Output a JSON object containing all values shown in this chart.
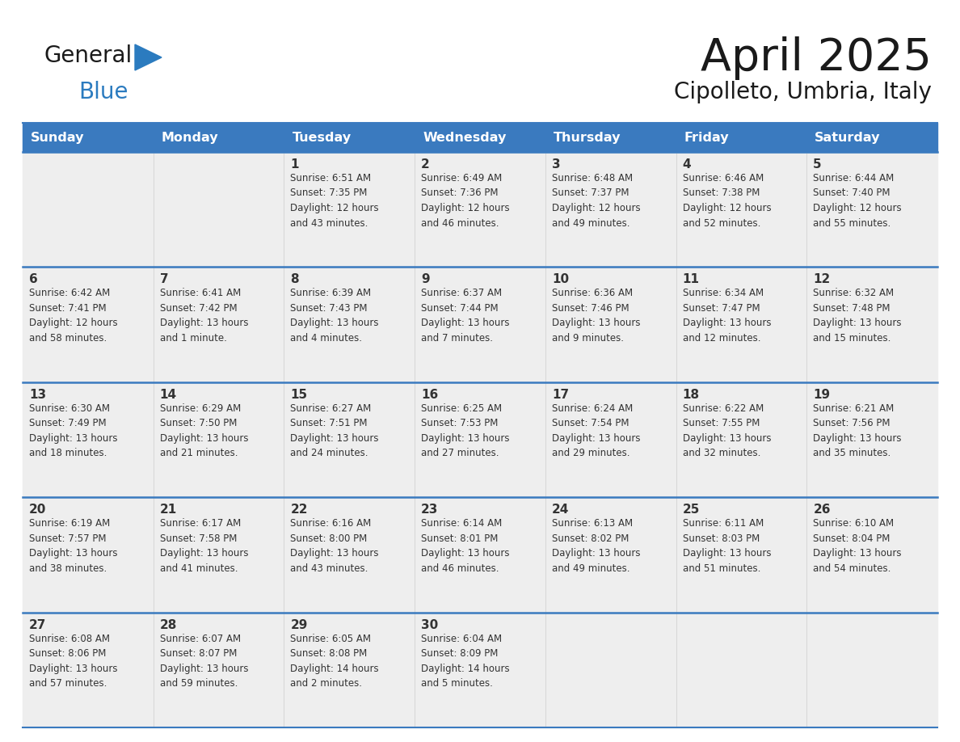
{
  "title": "April 2025",
  "subtitle": "Cipolleto, Umbria, Italy",
  "header_bg": "#3a7abf",
  "header_text_color": "#ffffff",
  "day_headers": [
    "Sunday",
    "Monday",
    "Tuesday",
    "Wednesday",
    "Thursday",
    "Friday",
    "Saturday"
  ],
  "weeks": [
    [
      {
        "day": "",
        "info": ""
      },
      {
        "day": "",
        "info": ""
      },
      {
        "day": "1",
        "info": "Sunrise: 6:51 AM\nSunset: 7:35 PM\nDaylight: 12 hours\nand 43 minutes."
      },
      {
        "day": "2",
        "info": "Sunrise: 6:49 AM\nSunset: 7:36 PM\nDaylight: 12 hours\nand 46 minutes."
      },
      {
        "day": "3",
        "info": "Sunrise: 6:48 AM\nSunset: 7:37 PM\nDaylight: 12 hours\nand 49 minutes."
      },
      {
        "day": "4",
        "info": "Sunrise: 6:46 AM\nSunset: 7:38 PM\nDaylight: 12 hours\nand 52 minutes."
      },
      {
        "day": "5",
        "info": "Sunrise: 6:44 AM\nSunset: 7:40 PM\nDaylight: 12 hours\nand 55 minutes."
      }
    ],
    [
      {
        "day": "6",
        "info": "Sunrise: 6:42 AM\nSunset: 7:41 PM\nDaylight: 12 hours\nand 58 minutes."
      },
      {
        "day": "7",
        "info": "Sunrise: 6:41 AM\nSunset: 7:42 PM\nDaylight: 13 hours\nand 1 minute."
      },
      {
        "day": "8",
        "info": "Sunrise: 6:39 AM\nSunset: 7:43 PM\nDaylight: 13 hours\nand 4 minutes."
      },
      {
        "day": "9",
        "info": "Sunrise: 6:37 AM\nSunset: 7:44 PM\nDaylight: 13 hours\nand 7 minutes."
      },
      {
        "day": "10",
        "info": "Sunrise: 6:36 AM\nSunset: 7:46 PM\nDaylight: 13 hours\nand 9 minutes."
      },
      {
        "day": "11",
        "info": "Sunrise: 6:34 AM\nSunset: 7:47 PM\nDaylight: 13 hours\nand 12 minutes."
      },
      {
        "day": "12",
        "info": "Sunrise: 6:32 AM\nSunset: 7:48 PM\nDaylight: 13 hours\nand 15 minutes."
      }
    ],
    [
      {
        "day": "13",
        "info": "Sunrise: 6:30 AM\nSunset: 7:49 PM\nDaylight: 13 hours\nand 18 minutes."
      },
      {
        "day": "14",
        "info": "Sunrise: 6:29 AM\nSunset: 7:50 PM\nDaylight: 13 hours\nand 21 minutes."
      },
      {
        "day": "15",
        "info": "Sunrise: 6:27 AM\nSunset: 7:51 PM\nDaylight: 13 hours\nand 24 minutes."
      },
      {
        "day": "16",
        "info": "Sunrise: 6:25 AM\nSunset: 7:53 PM\nDaylight: 13 hours\nand 27 minutes."
      },
      {
        "day": "17",
        "info": "Sunrise: 6:24 AM\nSunset: 7:54 PM\nDaylight: 13 hours\nand 29 minutes."
      },
      {
        "day": "18",
        "info": "Sunrise: 6:22 AM\nSunset: 7:55 PM\nDaylight: 13 hours\nand 32 minutes."
      },
      {
        "day": "19",
        "info": "Sunrise: 6:21 AM\nSunset: 7:56 PM\nDaylight: 13 hours\nand 35 minutes."
      }
    ],
    [
      {
        "day": "20",
        "info": "Sunrise: 6:19 AM\nSunset: 7:57 PM\nDaylight: 13 hours\nand 38 minutes."
      },
      {
        "day": "21",
        "info": "Sunrise: 6:17 AM\nSunset: 7:58 PM\nDaylight: 13 hours\nand 41 minutes."
      },
      {
        "day": "22",
        "info": "Sunrise: 6:16 AM\nSunset: 8:00 PM\nDaylight: 13 hours\nand 43 minutes."
      },
      {
        "day": "23",
        "info": "Sunrise: 6:14 AM\nSunset: 8:01 PM\nDaylight: 13 hours\nand 46 minutes."
      },
      {
        "day": "24",
        "info": "Sunrise: 6:13 AM\nSunset: 8:02 PM\nDaylight: 13 hours\nand 49 minutes."
      },
      {
        "day": "25",
        "info": "Sunrise: 6:11 AM\nSunset: 8:03 PM\nDaylight: 13 hours\nand 51 minutes."
      },
      {
        "day": "26",
        "info": "Sunrise: 6:10 AM\nSunset: 8:04 PM\nDaylight: 13 hours\nand 54 minutes."
      }
    ],
    [
      {
        "day": "27",
        "info": "Sunrise: 6:08 AM\nSunset: 8:06 PM\nDaylight: 13 hours\nand 57 minutes."
      },
      {
        "day": "28",
        "info": "Sunrise: 6:07 AM\nSunset: 8:07 PM\nDaylight: 13 hours\nand 59 minutes."
      },
      {
        "day": "29",
        "info": "Sunrise: 6:05 AM\nSunset: 8:08 PM\nDaylight: 14 hours\nand 2 minutes."
      },
      {
        "day": "30",
        "info": "Sunrise: 6:04 AM\nSunset: 8:09 PM\nDaylight: 14 hours\nand 5 minutes."
      },
      {
        "day": "",
        "info": ""
      },
      {
        "day": "",
        "info": ""
      },
      {
        "day": "",
        "info": ""
      }
    ]
  ],
  "logo_general_color": "#1a1a1a",
  "logo_blue_color": "#2b7bbf",
  "logo_triangle_color": "#2b7bbf",
  "line_color": "#3a7abf",
  "cell_bg": "#eeeeee",
  "cell_text_color": "#333333",
  "title_color": "#1a1a1a",
  "subtitle_color": "#1a1a1a"
}
